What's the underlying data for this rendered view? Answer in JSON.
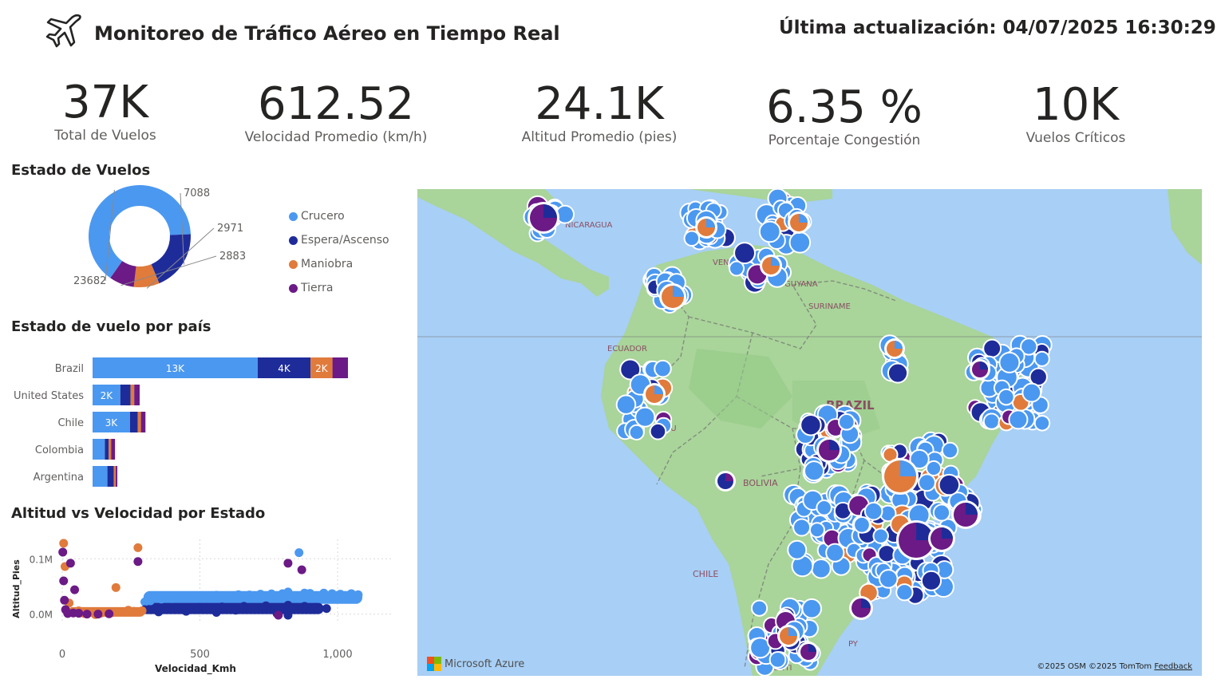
{
  "header": {
    "title": "Monitoreo de Tráfico Aéreo en Tiempo Real",
    "last_update": "Última actualización: 04/07/2025 16:30:29",
    "icon": "airplane-icon"
  },
  "kpis": [
    {
      "value": "37K",
      "label": "Total de Vuelos"
    },
    {
      "value": "612.52",
      "label": "Velocidad Promedio (km/h)"
    },
    {
      "value": "24.1K",
      "label": "Altitud Promedio (pies)"
    },
    {
      "value": "6.35 %",
      "label": "Porcentaje Congestión"
    },
    {
      "value": "10K",
      "label": "Vuelos Críticos"
    }
  ],
  "sections": {
    "donut_title": "Estado de Vuelos",
    "bar_title": "Estado de vuelo por país",
    "scatter_title": "Altitud vs Velocidad por Estado"
  },
  "colors": {
    "crucero": "#4b98f0",
    "espera": "#1e2c9a",
    "maniobra": "#e07b3c",
    "tierra": "#6b1a86"
  },
  "chart_data": [
    {
      "type": "pie",
      "title": "Estado de Vuelos",
      "donut": true,
      "categories": [
        "Crucero",
        "Espera/Ascenso",
        "Maniobra",
        "Tierra"
      ],
      "values": [
        23682,
        7088,
        2971,
        2883
      ],
      "labels": [
        "23682",
        "7088",
        "2971",
        "2883"
      ],
      "legend": "right"
    },
    {
      "type": "bar",
      "orientation": "horizontal",
      "stacked": true,
      "title": "Estado de vuelo por país",
      "categories": [
        "Brazil",
        "United States",
        "Chile",
        "Colombia",
        "Argentina"
      ],
      "series": [
        {
          "name": "Crucero",
          "values": [
            12800,
            2150,
            2900,
            950,
            1150
          ],
          "labels": [
            "13K",
            "2K",
            "3K",
            "",
            ""
          ]
        },
        {
          "name": "Espera/Ascenso",
          "values": [
            4100,
            800,
            600,
            300,
            500
          ],
          "labels": [
            "4K",
            "",
            "",
            "",
            ""
          ]
        },
        {
          "name": "Maniobra",
          "values": [
            1700,
            280,
            250,
            190,
            150
          ],
          "labels": [
            "2K",
            "",
            "",
            "",
            ""
          ]
        },
        {
          "name": "Tierra",
          "values": [
            1200,
            420,
            350,
            300,
            120
          ],
          "labels": [
            "",
            "",
            "",
            "",
            ""
          ]
        }
      ]
    },
    {
      "type": "scatter",
      "title": "Altitud vs Velocidad por Estado",
      "xlabel": "Velocidad_Kmh",
      "ylabel": "Altitud_Pies",
      "xlim": [
        0,
        1200
      ],
      "ylim": [
        -15000,
        135000
      ],
      "xticks": [
        "0",
        "500",
        "1,000"
      ],
      "xtick_values": [
        0,
        500,
        1000
      ],
      "yticks": [
        "0.0M",
        "0.1M"
      ],
      "ytick_values": [
        0,
        100000
      ],
      "grid": true,
      "series": [
        {
          "name": "Crucero",
          "points": [
            [
              300,
              22000
            ],
            [
              360,
              27000
            ],
            [
              420,
              30000
            ],
            [
              480,
              32000
            ],
            [
              560,
              34000
            ],
            [
              640,
              35000
            ],
            [
              720,
              36000
            ],
            [
              800,
              37000
            ],
            [
              880,
              38000
            ],
            [
              950,
              38000
            ],
            [
              1010,
              36000
            ],
            [
              1050,
              37000
            ],
            [
              1075,
              35000
            ],
            [
              860,
              111000
            ],
            [
              820,
              40000
            ],
            [
              520,
              31000
            ],
            [
              600,
              33000
            ],
            [
              680,
              34500
            ],
            [
              760,
              36500
            ],
            [
              900,
              37500
            ],
            [
              980,
              37000
            ],
            [
              400,
              28000
            ],
            [
              450,
              30500
            ],
            [
              320,
              24000
            ]
          ]
        },
        {
          "name": "Espera/Ascenso",
          "points": [
            [
              300,
              8000
            ],
            [
              360,
              10000
            ],
            [
              420,
              11000
            ],
            [
              500,
              12000
            ],
            [
              580,
              13000
            ],
            [
              660,
              14000
            ],
            [
              740,
              15000
            ],
            [
              820,
              16000
            ],
            [
              880,
              14000
            ],
            [
              920,
              12000
            ],
            [
              960,
              10000
            ],
            [
              820,
              -2000
            ],
            [
              780,
              1000
            ],
            [
              560,
              3000
            ],
            [
              450,
              5000
            ],
            [
              350,
              4000
            ],
            [
              700,
              9000
            ],
            [
              630,
              7000
            ]
          ]
        },
        {
          "name": "Maniobra",
          "points": [
            [
              5,
              128000
            ],
            [
              10,
              86000
            ],
            [
              25,
              20000
            ],
            [
              60,
              6000
            ],
            [
              100,
              3000
            ],
            [
              140,
              1500
            ],
            [
              180,
              2500
            ],
            [
              220,
              4000
            ],
            [
              260,
              5000
            ],
            [
              290,
              6000
            ],
            [
              275,
              120000
            ],
            [
              195,
              48000
            ],
            [
              120,
              -1000
            ],
            [
              80,
              1000
            ],
            [
              240,
              7000
            ]
          ]
        },
        {
          "name": "Tierra",
          "points": [
            [
              2,
              112000
            ],
            [
              5,
              60000
            ],
            [
              8,
              25000
            ],
            [
              12,
              8000
            ],
            [
              40,
              2000
            ],
            [
              90,
              0
            ],
            [
              130,
              0
            ],
            [
              170,
              500
            ],
            [
              275,
              95000
            ],
            [
              30,
              92000
            ],
            [
              45,
              44000
            ],
            [
              20,
              1000
            ],
            [
              60,
              1500
            ],
            [
              820,
              92000
            ],
            [
              870,
              80000
            ],
            [
              785,
              -2000
            ]
          ]
        }
      ]
    }
  ],
  "map": {
    "labels": [
      "NICARAGUA",
      "VENEZ",
      "GUYANA",
      "SURINAME",
      "ECUADOR",
      "PERU",
      "BRAZIL",
      "BOLIVIA",
      "CHILE",
      "ARGENTI",
      "PY"
    ],
    "logo": "Microsoft Azure",
    "attribution": "©2025 OSM ©2025 TomTom",
    "feedback": "Feedback"
  }
}
